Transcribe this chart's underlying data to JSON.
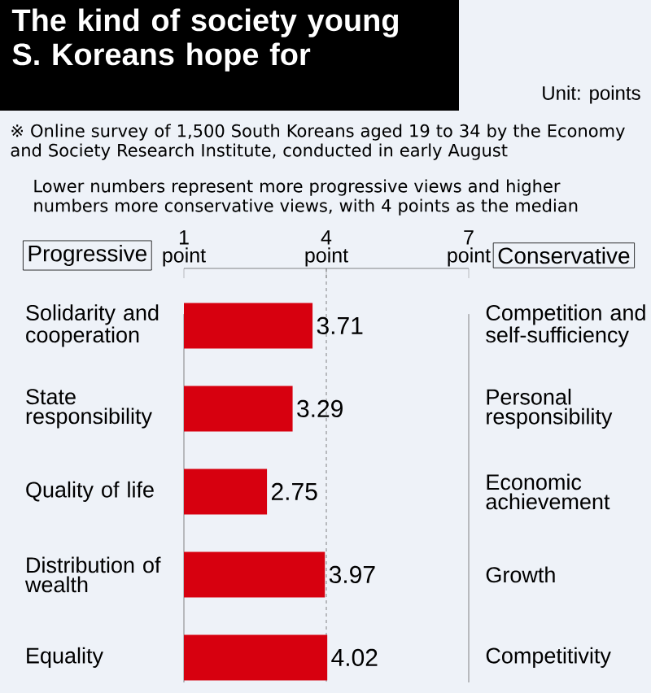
{
  "chart_data": {
    "type": "bar",
    "orientation": "horizontal",
    "title": "The kind of society young S. Koreans hope for",
    "subtitle": "Unit: points",
    "annotations": [
      "※ Online survey of 1,500 South Koreans aged 19 to 34 by the Economy and Society Research Institute, conducted in early August",
      "Lower numbers represent more progressive views and higher numbers more conservative views, with 4 points as the median",
      "Progressive",
      "Conservative"
    ],
    "categories": [
      "Solidarity and cooperation",
      "State responsibility",
      "Quality of life",
      "Distribution of wealth",
      "Equality"
    ],
    "y2_categories": [
      "Competition and self-sufficiency",
      "Personal responsibility",
      "Economic achievement",
      "Growth",
      "Competitivity"
    ],
    "values": [
      3.71,
      3.29,
      2.75,
      3.97,
      4.02
    ],
    "color": "#d7000f",
    "xlim": [
      1,
      7
    ],
    "xticks": [
      {
        "value": 1,
        "label": "1 point"
      },
      {
        "value": 4,
        "label": "4 point"
      },
      {
        "value": 7,
        "label": "7 point"
      }
    ],
    "ref_lines": [
      {
        "axis": "x",
        "value": 4,
        "line_style": "dotted"
      }
    ],
    "data_labels": true
  }
}
